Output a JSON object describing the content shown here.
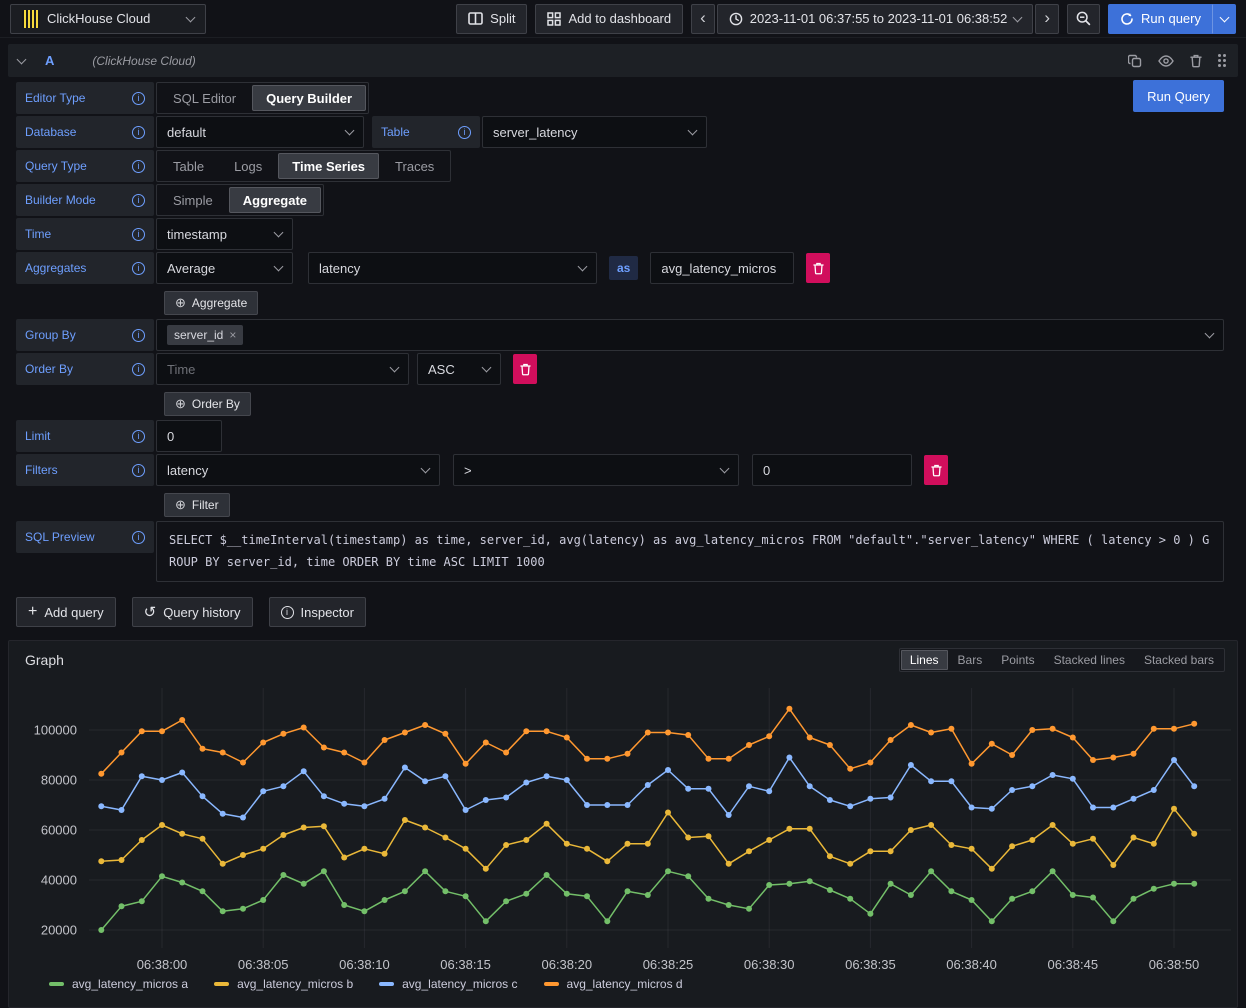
{
  "topbar": {
    "datasource_label": "ClickHouse Cloud",
    "split": "Split",
    "add_to_dashboard": "Add to dashboard",
    "time_range": "2023-11-01 06:37:55 to 2023-11-01 06:38:52",
    "run_query": "Run query"
  },
  "icons": {
    "datasource_logo": "clickhouse-logo",
    "split": "split-panes-icon",
    "add_to_dashboard": "apps-grid-icon",
    "time_range": "clock-icon",
    "zoom_out": "magnifier-minus-icon",
    "run_query": "sync-icon",
    "query_header": [
      "copy-icon",
      "eye-icon",
      "trash-icon",
      "drag-handle-icon"
    ],
    "row_labels": "info-circle-icon",
    "add_buttons": "circle-plus-icon",
    "query_history": "history-icon",
    "inspector": "info-circle-icon"
  },
  "query": {
    "ref_id": "A",
    "datasource_hint": "(ClickHouse Cloud)",
    "run_query": "Run Query",
    "editor_type": {
      "label": "Editor Type",
      "options": [
        "SQL Editor",
        "Query Builder"
      ],
      "active": "Query Builder"
    },
    "database": {
      "label": "Database",
      "value": "default"
    },
    "table": {
      "label": "Table",
      "value": "server_latency"
    },
    "query_type": {
      "label": "Query Type",
      "options": [
        "Table",
        "Logs",
        "Time Series",
        "Traces"
      ],
      "active": "Time Series"
    },
    "builder_mode": {
      "label": "Builder Mode",
      "options": [
        "Simple",
        "Aggregate"
      ],
      "active": "Aggregate"
    },
    "time": {
      "label": "Time",
      "value": "timestamp"
    },
    "aggregates": {
      "label": "Aggregates",
      "function": "Average",
      "column": "latency",
      "as_label": "as",
      "alias": "avg_latency_micros",
      "add_button": "Aggregate"
    },
    "group_by": {
      "label": "Group By",
      "tag": "server_id"
    },
    "order_by": {
      "label": "Order By",
      "field": "Time",
      "direction": "ASC",
      "add_button": "Order By"
    },
    "limit": {
      "label": "Limit",
      "value": "0"
    },
    "filters": {
      "label": "Filters",
      "field": "latency",
      "operator": ">",
      "value": "0",
      "add_button": "Filter"
    },
    "sql_preview": {
      "label": "SQL Preview",
      "sql": "SELECT $__timeInterval(timestamp) as time, server_id, avg(latency) as avg_latency_micros FROM \"default\".\"server_latency\" WHERE ( latency > 0 ) GROUP BY server_id, time ORDER BY time ASC LIMIT 1000"
    }
  },
  "footer": {
    "add_query": "Add query",
    "query_history": "Query history",
    "inspector": "Inspector"
  },
  "graph": {
    "title": "Graph",
    "display_modes": [
      "Lines",
      "Bars",
      "Points",
      "Stacked lines",
      "Stacked bars"
    ],
    "active_mode": "Lines"
  },
  "chart_data": {
    "type": "line",
    "title": "Graph",
    "xlabel": "",
    "ylabel": "",
    "grid": true,
    "legend_position": "bottom",
    "x_tick_labels": [
      "06:38:00",
      "06:38:05",
      "06:38:10",
      "06:38:15",
      "06:38:20",
      "06:38:25",
      "06:38:30",
      "06:38:35",
      "06:38:40",
      "06:38:45",
      "06:38:50"
    ],
    "x_start_time": "06:37:57",
    "x_end_time": "06:38:51",
    "x_seconds_per_point": 1,
    "x_first_point_offset_seconds": -3,
    "ylim": [
      12800,
      116800
    ],
    "y_ticks": [
      20000,
      40000,
      60000,
      80000,
      100000
    ],
    "series": [
      {
        "name": "avg_latency_micros a",
        "color": "#73BF69",
        "values": [
          20000,
          29500,
          31500,
          41500,
          39000,
          35500,
          27500,
          28500,
          32000,
          42000,
          38500,
          43500,
          30000,
          27500,
          32000,
          35500,
          43500,
          35500,
          33500,
          23500,
          31500,
          34500,
          42000,
          34500,
          33500,
          23500,
          35500,
          34000,
          43500,
          41500,
          32500,
          30000,
          28500,
          38000,
          38500,
          39500,
          36000,
          32500,
          26500,
          38500,
          34000,
          43500,
          35500,
          32000,
          23500,
          32500,
          35500,
          43500,
          34000,
          33000,
          23500,
          32500,
          36500,
          38500,
          38500
        ]
      },
      {
        "name": "avg_latency_micros b",
        "color": "#EAB839",
        "values": [
          47500,
          48000,
          56000,
          62000,
          58500,
          56500,
          46500,
          50000,
          52500,
          58000,
          61000,
          61500,
          49000,
          52500,
          50500,
          64000,
          61000,
          57000,
          52500,
          44500,
          54000,
          56000,
          62500,
          54500,
          52500,
          47500,
          54500,
          54500,
          67000,
          57000,
          57500,
          46500,
          51500,
          56000,
          60500,
          60500,
          49500,
          46500,
          51500,
          51500,
          60000,
          62000,
          54000,
          52500,
          44500,
          53500,
          56000,
          62000,
          54500,
          56500,
          46000,
          57000,
          54500,
          68500,
          58500
        ]
      },
      {
        "name": "avg_latency_micros c",
        "color": "#8AB8FF",
        "values": [
          69500,
          68000,
          81500,
          80000,
          83000,
          73500,
          66500,
          65000,
          75500,
          77500,
          83500,
          73500,
          70500,
          69500,
          72500,
          85000,
          79500,
          81500,
          68000,
          72000,
          73000,
          79000,
          81500,
          80000,
          70000,
          70000,
          70000,
          78000,
          84000,
          76500,
          76500,
          66000,
          77500,
          75500,
          89000,
          77500,
          72000,
          69500,
          72500,
          73000,
          86000,
          79500,
          79500,
          69000,
          68500,
          76000,
          77500,
          82000,
          80500,
          69000,
          69000,
          72500,
          76000,
          88000,
          77500
        ]
      },
      {
        "name": "avg_latency_micros d",
        "color": "#FF9830",
        "values": [
          82500,
          91000,
          99500,
          99500,
          104000,
          92500,
          91000,
          87000,
          95000,
          98500,
          101000,
          93000,
          91000,
          87000,
          96000,
          99000,
          102000,
          98500,
          86500,
          95000,
          91000,
          99500,
          99500,
          97000,
          88500,
          88500,
          90500,
          99000,
          99000,
          98000,
          88500,
          88500,
          94000,
          97500,
          108500,
          97000,
          94000,
          84500,
          87000,
          96000,
          102000,
          99000,
          100500,
          86500,
          94500,
          90000,
          100000,
          100500,
          97000,
          88000,
          89000,
          90500,
          100500,
          100500,
          102500
        ]
      }
    ]
  }
}
